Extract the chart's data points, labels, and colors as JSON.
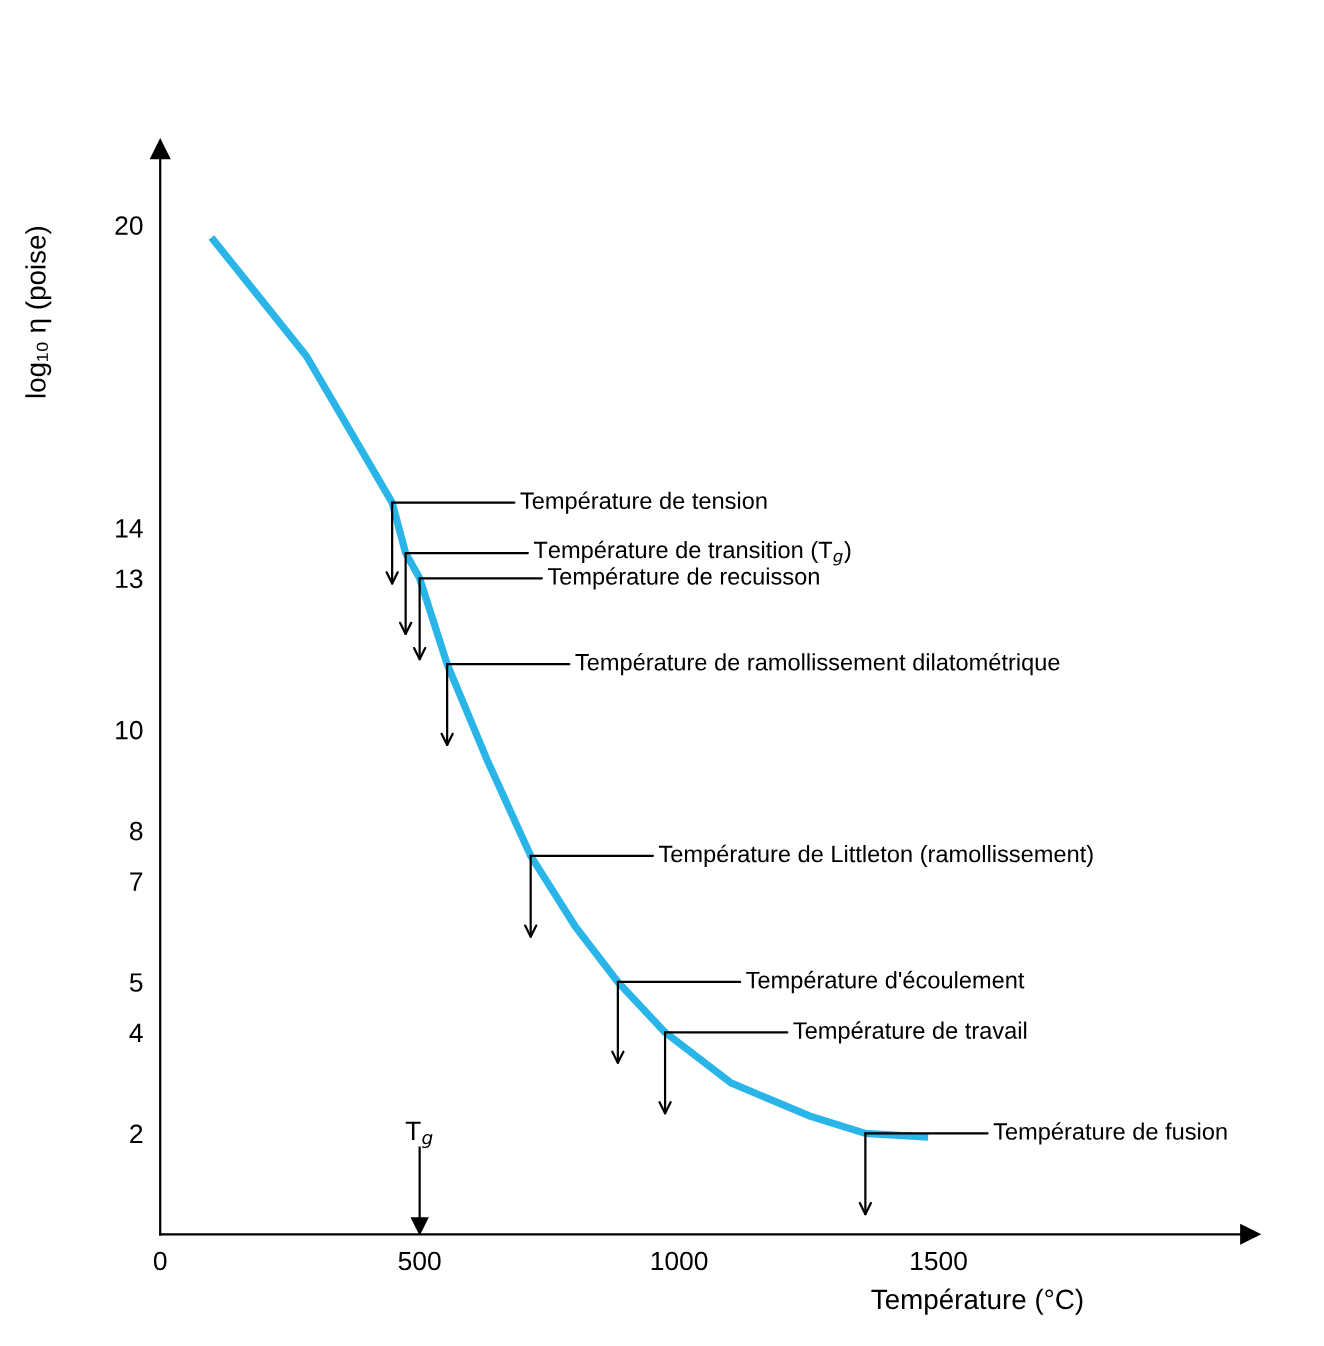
{
  "chart_data": {
    "type": "line",
    "xlabel": "Température (°C)",
    "ylabel": "log₁₀ η (poise)",
    "x": [
      103,
      282,
      447,
      473,
      500,
      553,
      630,
      714,
      800,
      882,
      973,
      1100,
      1250,
      1359,
      1473
    ],
    "series": [
      {
        "color": "#29b5e8",
        "values": [
          19.7,
          17.4,
          14.5,
          13.5,
          13.0,
          11.3,
          9.4,
          7.5,
          6.1,
          5.0,
          4.0,
          3.0,
          2.35,
          2.0,
          1.93
        ]
      }
    ],
    "xlim": [
      0,
      2100
    ],
    "ylim": [
      0,
      21.5
    ],
    "xticks": [
      0,
      500,
      1000,
      1500
    ],
    "yticks": [
      2,
      4,
      5,
      7,
      8,
      10,
      13,
      14,
      20
    ],
    "grid": false,
    "legend": false,
    "marker": "none",
    "line_style": "solid",
    "annotations": [
      {
        "text": "Température de tension",
        "x": 447,
        "y": 14.5
      },
      {
        "text": "Température de transition (T$_{g}$)",
        "x": 473,
        "y": 13.5
      },
      {
        "text": "Température de recuisson",
        "x": 500,
        "y": 13.0
      },
      {
        "text": "Température de ramollissement dilatométrique",
        "x": 553,
        "y": 11.3
      },
      {
        "text": "Température de Littleton (ramollissement)",
        "x": 714,
        "y": 7.5
      },
      {
        "text": "Température d'écoulement",
        "x": 882,
        "y": 5.0
      },
      {
        "text": "Température de travail",
        "x": 973,
        "y": 4.0
      },
      {
        "text": "Température de fusion",
        "x": 1359,
        "y": 2.0
      }
    ],
    "ref_lines": [
      {
        "axis": "x",
        "value": 500,
        "label": "T$_{g}$"
      }
    ]
  }
}
